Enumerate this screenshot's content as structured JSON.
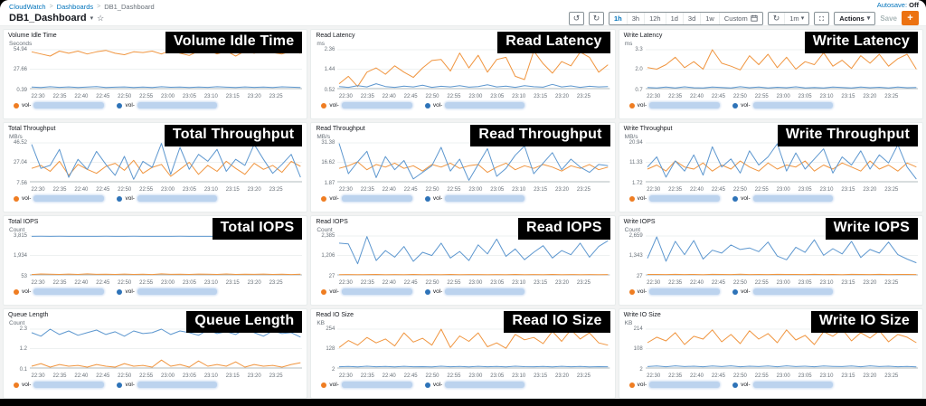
{
  "app": {
    "breadcrumb": {
      "items": [
        "CloudWatch",
        "Dashboards",
        "DB1_Dashboard"
      ],
      "separator": ">"
    },
    "title": "DB1_Dashboard",
    "star_icon": "☆",
    "caret_icon": "▾",
    "autosave": {
      "label": "Autosave:",
      "value": "Off"
    },
    "toolbar": {
      "undo_icon": "↺",
      "redo_icon": "↻",
      "time_ranges": [
        "1h",
        "3h",
        "12h",
        "1d",
        "3d",
        "1w"
      ],
      "selected_range": "1h",
      "custom_label": "Custom",
      "refresh_icon": "↻",
      "refresh_interval": "1m",
      "actions_label": "Actions",
      "save_label": "Save",
      "add_label": "+"
    },
    "colors": {
      "accent_orange": "#ec7211",
      "link_blue": "#0073bb",
      "series_orange": "#f0953f",
      "series_blue": "#5d97cf"
    }
  },
  "x_labels": [
    "22:30",
    "22:35",
    "22:40",
    "22:45",
    "22:50",
    "22:55",
    "23:00",
    "23:05",
    "23:10",
    "23:15",
    "23:20",
    "23:25"
  ],
  "legend_items": [
    {
      "label": "vol-",
      "color": "#ef7d22",
      "redacted_width": 78
    },
    {
      "label": "vol-",
      "color": "#2e73b8",
      "redacted_width": 88
    }
  ],
  "widgets": [
    {
      "title": "Volume Idle Time",
      "overlay": "Volume Idle Time",
      "unit": "Seconds",
      "ytick_labels": [
        "54.94",
        "27.66",
        "0.39"
      ],
      "domain": [
        0.39,
        54.94
      ],
      "series": [
        {
          "name": "vol- (orange)",
          "color": "#f0953f",
          "values": [
            52,
            49,
            46,
            53,
            50,
            53,
            49,
            52,
            54,
            50,
            48,
            52,
            51,
            53,
            49,
            54,
            50,
            47,
            53,
            54.5,
            49,
            53,
            46,
            53,
            50,
            54,
            51,
            49,
            53,
            50
          ]
        },
        {
          "name": "vol- (blue)",
          "color": "#5d97cf",
          "values": [
            2.5,
            2,
            3,
            2.2,
            2.8,
            2,
            2.5,
            3.2,
            2,
            2.4,
            2.8,
            2.1,
            2.6,
            2,
            3,
            2.3,
            2.7,
            2,
            2.5,
            2.2,
            3.1,
            2.4,
            2,
            2.8,
            2.2,
            2.6,
            2,
            2.9,
            2.4,
            2.1
          ]
        }
      ]
    },
    {
      "title": "Read Latency",
      "overlay": "Read Latency",
      "unit": "ms",
      "ytick_labels": [
        "2.36",
        "1.44",
        "0.52"
      ],
      "domain": [
        0.52,
        2.36
      ],
      "series": [
        {
          "name": "vol- (orange)",
          "color": "#f0953f",
          "values": [
            0.75,
            1.1,
            0.62,
            1.3,
            1.5,
            1.2,
            1.6,
            1.3,
            1.05,
            1.5,
            1.85,
            1.9,
            1.35,
            2.2,
            1.5,
            2.1,
            1.3,
            1.9,
            2.0,
            1.1,
            0.95,
            2.3,
            1.7,
            1.25,
            1.8,
            1.6,
            2.25,
            2.0,
            1.3,
            1.65
          ]
        },
        {
          "name": "vol- (blue)",
          "color": "#5d97cf",
          "values": [
            0.62,
            0.58,
            0.66,
            0.6,
            0.75,
            0.62,
            0.58,
            0.64,
            0.6,
            0.68,
            0.58,
            0.63,
            0.6,
            0.66,
            0.59,
            0.62,
            0.7,
            0.6,
            0.64,
            0.58,
            0.66,
            0.61,
            0.59,
            0.72,
            0.6,
            0.65,
            0.58,
            0.63,
            0.6,
            0.62
          ]
        }
      ]
    },
    {
      "title": "Write Latency",
      "overlay": "Write Latency",
      "unit": "ms",
      "ytick_labels": [
        "3.3",
        "2.0",
        "0.7"
      ],
      "domain": [
        0.7,
        3.3
      ],
      "series": [
        {
          "name": "vol- (orange)",
          "color": "#f0953f",
          "values": [
            2.1,
            2.0,
            2.3,
            2.8,
            2.1,
            2.5,
            2.0,
            3.3,
            2.4,
            2.2,
            1.95,
            2.9,
            2.3,
            3.0,
            2.1,
            2.8,
            2.0,
            2.5,
            2.3,
            3.1,
            2.2,
            2.6,
            2.05,
            2.9,
            2.4,
            3.0,
            2.2,
            2.7,
            3.0,
            2.0
          ]
        },
        {
          "name": "vol- (blue)",
          "color": "#5d97cf",
          "values": [
            0.78,
            0.74,
            0.8,
            0.75,
            0.82,
            0.76,
            0.74,
            0.8,
            0.77,
            0.75,
            0.83,
            0.76,
            0.8,
            0.74,
            0.79,
            0.76,
            0.82,
            0.75,
            0.78,
            0.74,
            0.8,
            0.77,
            0.75,
            0.81,
            0.76,
            0.79,
            0.74,
            0.8,
            0.76,
            0.78
          ]
        }
      ]
    },
    {
      "title": "Total Throughput",
      "overlay": "Total Throughput",
      "unit": "MB/s",
      "ytick_labels": [
        "46.52",
        "27.04",
        "7.56"
      ],
      "domain": [
        7.56,
        46.52
      ],
      "series": [
        {
          "name": "vol- (orange)",
          "color": "#f0953f",
          "values": [
            21,
            24,
            18,
            28,
            14,
            25,
            20,
            16,
            23,
            26,
            19,
            29,
            16,
            22,
            25,
            13,
            20,
            27,
            15,
            24,
            18,
            28,
            21,
            15,
            26,
            20,
            24,
            17,
            28,
            23
          ]
        },
        {
          "name": "vol- (blue)",
          "color": "#5d97cf",
          "values": [
            45,
            21,
            24,
            40,
            12,
            30,
            20,
            38,
            25,
            14,
            33,
            10,
            28,
            22,
            46,
            15,
            42,
            20,
            35,
            28,
            40,
            18,
            30,
            24,
            45,
            30,
            16,
            25,
            35,
            12
          ]
        }
      ]
    },
    {
      "title": "Read Throughput",
      "overlay": "Read Throughput",
      "unit": "MB/s",
      "ytick_labels": [
        "31.38",
        "16.62",
        "1.87"
      ],
      "domain": [
        1.87,
        31.38
      ],
      "series": [
        {
          "name": "vol- (orange)",
          "color": "#f0953f",
          "values": [
            12,
            14,
            17,
            11,
            15,
            13,
            16,
            12,
            14,
            10,
            15,
            13,
            16,
            12,
            14,
            15,
            9,
            13,
            16,
            11,
            14,
            12,
            15,
            13,
            10,
            14,
            12,
            15,
            11,
            13
          ]
        },
        {
          "name": "vol- (blue)",
          "color": "#5d97cf",
          "values": [
            31,
            8,
            17,
            25,
            5,
            21,
            11,
            18,
            4,
            9,
            14,
            28,
            10,
            19,
            3,
            15,
            27,
            6,
            12,
            22,
            29,
            8,
            16,
            24,
            11,
            19,
            13,
            9,
            15,
            14
          ]
        }
      ]
    },
    {
      "title": "Write Throughput",
      "overlay": "Write Throughput",
      "unit": "MB/s",
      "ytick_labels": [
        "20.94",
        "11.33",
        "1.72"
      ],
      "domain": [
        1.72,
        20.94
      ],
      "series": [
        {
          "name": "vol- (orange)",
          "color": "#f0953f",
          "values": [
            8,
            10,
            7,
            12,
            9,
            8,
            11,
            7,
            10,
            8,
            12,
            9,
            7,
            11,
            8,
            10,
            9,
            12,
            7,
            10,
            8,
            11,
            9,
            7,
            12,
            8,
            10,
            7,
            11,
            9
          ]
        },
        {
          "name": "vol- (blue)",
          "color": "#5d97cf",
          "values": [
            9,
            14,
            4,
            12,
            7,
            15,
            5,
            19,
            9,
            13,
            6,
            17,
            10,
            14,
            20.5,
            7,
            16,
            8,
            13,
            18,
            6,
            14,
            10,
            17,
            8,
            15,
            11,
            20,
            9,
            3
          ]
        }
      ]
    },
    {
      "title": "Total IOPS",
      "overlay": "Total IOPS",
      "unit": "Count",
      "ytick_labels": [
        "3,815",
        "1,934",
        "53"
      ],
      "domain": [
        53,
        3815
      ],
      "series": [
        {
          "name": "vol- (orange)",
          "color": "#f0953f",
          "values": [
            90,
            140,
            110,
            95,
            130,
            100,
            150,
            105,
            120,
            95,
            135,
            100,
            115,
            90,
            145,
            105,
            125,
            95,
            130,
            110,
            100,
            140,
            95,
            120,
            105,
            135,
            100,
            115,
            90,
            125
          ]
        },
        {
          "name": "vol- (blue)",
          "color": "#5d97cf",
          "values": [
            3780,
            3785,
            3782,
            3786,
            3781,
            3784,
            3780,
            3783,
            3785,
            3780,
            3782,
            3786,
            3781,
            3784,
            3782,
            3780,
            3785,
            3782,
            3784,
            3781,
            3783,
            3780,
            3785,
            3782,
            3784,
            3780,
            3783,
            3781,
            3785,
            3782
          ]
        }
      ]
    },
    {
      "title": "Read IOPS",
      "overlay": "Read IOPS",
      "unit": "Count",
      "ytick_labels": [
        "2,385",
        "1,206",
        "27"
      ],
      "domain": [
        27,
        2385
      ],
      "series": [
        {
          "name": "vol- (orange)",
          "color": "#f0953f",
          "values": [
            45,
            50,
            42,
            48,
            55,
            44,
            50,
            46,
            52,
            43,
            49,
            45,
            53,
            44,
            50,
            47,
            42,
            51,
            46,
            53,
            45,
            49,
            44,
            52,
            46,
            50,
            43,
            48,
            45,
            51
          ]
        },
        {
          "name": "vol- (blue)",
          "color": "#5d97cf",
          "values": [
            1950,
            1900,
            700,
            2350,
            900,
            1500,
            1100,
            1750,
            850,
            1400,
            1200,
            1950,
            1050,
            1450,
            900,
            1850,
            1300,
            2200,
            1150,
            1600,
            950,
            1400,
            1800,
            1050,
            1500,
            1250,
            1950,
            1100,
            1750,
            2100
          ]
        }
      ]
    },
    {
      "title": "Write IOPS",
      "overlay": "Write IOPS",
      "unit": "Count",
      "ytick_labels": [
        "2,659",
        "1,343",
        "27"
      ],
      "domain": [
        27,
        2659
      ],
      "series": [
        {
          "name": "vol- (orange)",
          "color": "#f0953f",
          "values": [
            55,
            60,
            50,
            65,
            52,
            58,
            48,
            62,
            55,
            50,
            68,
            53,
            60,
            49,
            64,
            55,
            58,
            50,
            66,
            52,
            60,
            48,
            63,
            55,
            50,
            65,
            52,
            58,
            60,
            50
          ]
        },
        {
          "name": "vol- (blue)",
          "color": "#5d97cf",
          "values": [
            1150,
            2600,
            950,
            2300,
            1400,
            2350,
            1100,
            1700,
            1500,
            2050,
            1750,
            1850,
            1600,
            2250,
            1300,
            1050,
            1900,
            1550,
            2400,
            1350,
            1800,
            1450,
            2300,
            1200,
            1750,
            1500,
            2250,
            1400,
            1100,
            850
          ]
        }
      ]
    },
    {
      "title": "Queue Length",
      "overlay": "Queue Length",
      "unit": "Count",
      "ytick_labels": [
        "2.3",
        "1.2",
        "0.1"
      ],
      "domain": [
        0.1,
        2.3
      ],
      "series": [
        {
          "name": "vol- (orange)",
          "color": "#f0953f",
          "values": [
            0.2,
            0.35,
            0.15,
            0.3,
            0.2,
            0.25,
            0.15,
            0.3,
            0.2,
            0.15,
            0.35,
            0.2,
            0.25,
            0.15,
            0.55,
            0.2,
            0.3,
            0.15,
            0.5,
            0.2,
            0.3,
            0.2,
            0.45,
            0.15,
            0.3,
            0.2,
            0.25,
            0.15,
            0.3,
            0.4
          ]
        },
        {
          "name": "vol- (blue)",
          "color": "#5d97cf",
          "values": [
            2.1,
            1.9,
            2.3,
            2.0,
            2.2,
            1.95,
            2.1,
            2.25,
            2.0,
            2.15,
            1.9,
            2.2,
            2.05,
            2.1,
            2.3,
            2.0,
            2.2,
            2.1,
            1.95,
            2.25,
            2.05,
            2.15,
            2.0,
            2.3,
            2.1,
            1.9,
            2.2,
            2.05,
            2.1,
            1.85
          ]
        }
      ]
    },
    {
      "title": "Read IO Size",
      "overlay": "Read IO Size",
      "unit": "KB",
      "ytick_labels": [
        "254",
        "128",
        "2"
      ],
      "domain": [
        2,
        254
      ],
      "series": [
        {
          "name": "vol- (orange)",
          "color": "#f0953f",
          "values": [
            135,
            180,
            150,
            200,
            165,
            190,
            145,
            230,
            170,
            195,
            150,
            254,
            135,
            210,
            175,
            230,
            140,
            165,
            130,
            220,
            185,
            200,
            160,
            240,
            175,
            250,
            190,
            230,
            165,
            150
          ]
        },
        {
          "name": "vol- (blue)",
          "color": "#5d97cf",
          "values": [
            10,
            12,
            9,
            14,
            10,
            12,
            9,
            13,
            10,
            11,
            9,
            14,
            10,
            12,
            9,
            13,
            10,
            12,
            9,
            14,
            11,
            10,
            12,
            9,
            13,
            10,
            12,
            9,
            11,
            10
          ]
        }
      ]
    },
    {
      "title": "Write IO Size",
      "overlay": "Write IO Size",
      "unit": "KB",
      "ytick_labels": [
        "214",
        "108",
        "2"
      ],
      "domain": [
        2,
        214
      ],
      "series": [
        {
          "name": "vol- (orange)",
          "color": "#f0953f",
          "values": [
            140,
            170,
            150,
            195,
            130,
            175,
            160,
            210,
            145,
            185,
            135,
            205,
            160,
            190,
            140,
            210,
            155,
            180,
            130,
            200,
            175,
            214,
            150,
            195,
            165,
            205,
            145,
            185,
            170,
            140
          ]
        },
        {
          "name": "vol- (blue)",
          "color": "#5d97cf",
          "values": [
            10,
            13,
            9,
            14,
            10,
            12,
            9,
            13,
            10,
            14,
            9,
            12,
            10,
            13,
            9,
            14,
            10,
            12,
            9,
            13,
            11,
            10,
            13,
            9,
            14,
            10,
            12,
            9,
            11,
            8
          ]
        }
      ]
    }
  ]
}
